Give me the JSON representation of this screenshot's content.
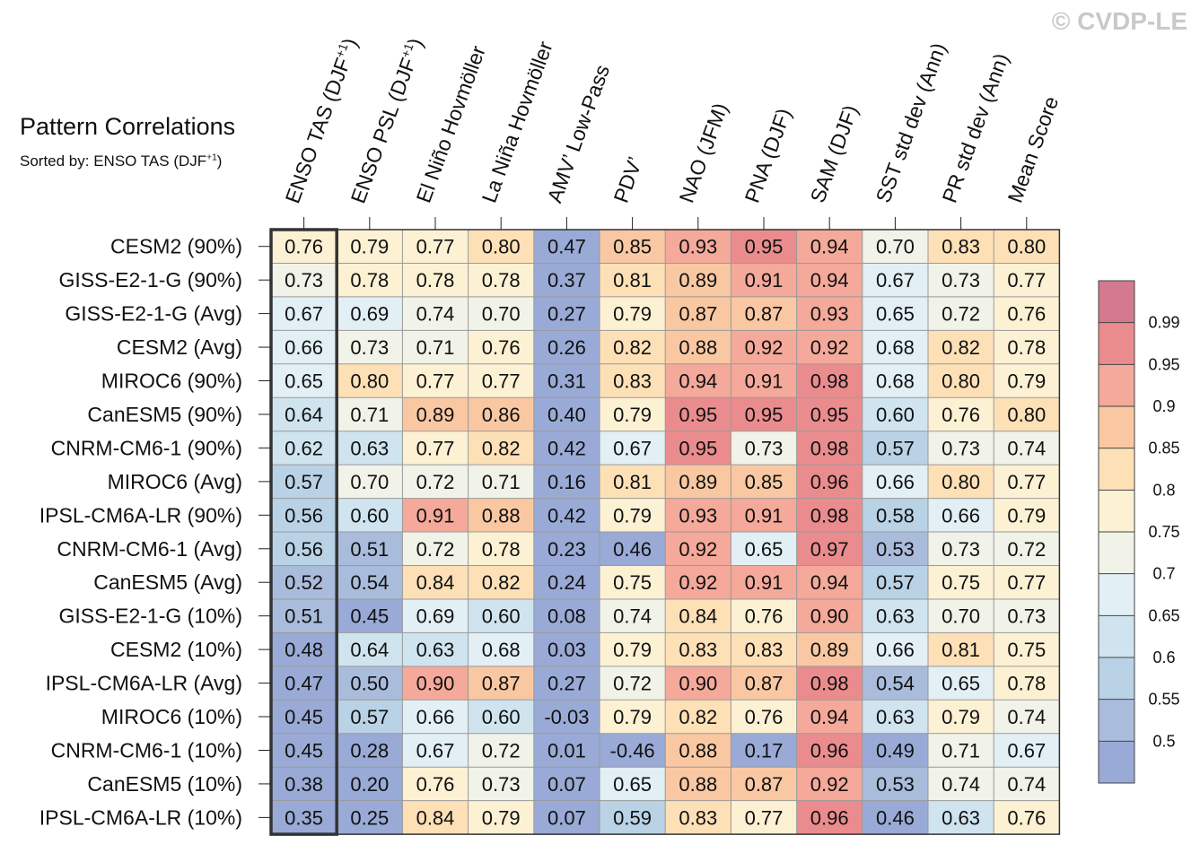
{
  "watermark": "© CVDP-LE",
  "chart_data": {
    "type": "heatmap",
    "title": "Pattern Correlations",
    "subtitle": {
      "text": "Sorted by: ENSO TAS (DJF",
      "sup": "+1",
      "suffix": ")"
    },
    "columns": [
      {
        "text": "ENSO TAS (DJF",
        "sup": "+1",
        "suffix": ")"
      },
      {
        "text": "ENSO PSL (DJF",
        "sup": "+1",
        "suffix": ")"
      },
      {
        "text": "El Niño Hovmöller"
      },
      {
        "text": "La Niña Hovmöller"
      },
      {
        "text": "AMV’ Low-Pass"
      },
      {
        "text": "PDV’"
      },
      {
        "text": "NAO (JFM)"
      },
      {
        "text": "PNA (DJF)"
      },
      {
        "text": "SAM (DJF)"
      },
      {
        "text": "SST std dev (Ann)"
      },
      {
        "text": "PR std dev (Ann)"
      },
      {
        "text": "Mean Score"
      }
    ],
    "rows": [
      "CESM2 (90%)",
      "GISS-E2-1-G (90%)",
      "GISS-E2-1-G (Avg)",
      "CESM2 (Avg)",
      "MIROC6 (90%)",
      "CanESM5 (90%)",
      "CNRM-CM6-1 (90%)",
      "MIROC6 (Avg)",
      "IPSL-CM6A-LR (90%)",
      "CNRM-CM6-1 (Avg)",
      "CanESM5 (Avg)",
      "GISS-E2-1-G (10%)",
      "CESM2 (10%)",
      "IPSL-CM6A-LR (Avg)",
      "MIROC6 (10%)",
      "CNRM-CM6-1 (10%)",
      "CanESM5 (10%)",
      "IPSL-CM6A-LR (10%)"
    ],
    "values": [
      [
        0.76,
        0.79,
        0.77,
        0.8,
        0.47,
        0.85,
        0.93,
        0.95,
        0.94,
        0.7,
        0.83,
        0.8
      ],
      [
        0.73,
        0.78,
        0.78,
        0.78,
        0.37,
        0.81,
        0.89,
        0.91,
        0.94,
        0.67,
        0.73,
        0.77
      ],
      [
        0.67,
        0.69,
        0.74,
        0.7,
        0.27,
        0.79,
        0.87,
        0.87,
        0.93,
        0.65,
        0.72,
        0.76
      ],
      [
        0.66,
        0.73,
        0.71,
        0.76,
        0.26,
        0.82,
        0.88,
        0.92,
        0.92,
        0.68,
        0.82,
        0.78
      ],
      [
        0.65,
        0.8,
        0.77,
        0.77,
        0.31,
        0.83,
        0.94,
        0.91,
        0.98,
        0.68,
        0.8,
        0.79
      ],
      [
        0.64,
        0.71,
        0.89,
        0.86,
        0.4,
        0.79,
        0.95,
        0.95,
        0.95,
        0.6,
        0.76,
        0.8
      ],
      [
        0.62,
        0.63,
        0.77,
        0.82,
        0.42,
        0.67,
        0.95,
        0.73,
        0.98,
        0.57,
        0.73,
        0.74
      ],
      [
        0.57,
        0.7,
        0.72,
        0.71,
        0.16,
        0.81,
        0.89,
        0.85,
        0.96,
        0.66,
        0.8,
        0.77
      ],
      [
        0.56,
        0.6,
        0.91,
        0.88,
        0.42,
        0.79,
        0.93,
        0.91,
        0.98,
        0.58,
        0.66,
        0.79
      ],
      [
        0.56,
        0.51,
        0.72,
        0.78,
        0.23,
        0.46,
        0.92,
        0.65,
        0.97,
        0.53,
        0.73,
        0.72
      ],
      [
        0.52,
        0.54,
        0.84,
        0.82,
        0.24,
        0.75,
        0.92,
        0.91,
        0.94,
        0.57,
        0.75,
        0.77
      ],
      [
        0.51,
        0.45,
        0.69,
        0.6,
        0.08,
        0.74,
        0.84,
        0.76,
        0.9,
        0.63,
        0.7,
        0.73
      ],
      [
        0.48,
        0.64,
        0.63,
        0.68,
        0.03,
        0.79,
        0.83,
        0.83,
        0.89,
        0.66,
        0.81,
        0.75
      ],
      [
        0.47,
        0.5,
        0.9,
        0.87,
        0.27,
        0.72,
        0.9,
        0.87,
        0.98,
        0.54,
        0.65,
        0.78
      ],
      [
        0.45,
        0.57,
        0.66,
        0.6,
        -0.03,
        0.79,
        0.82,
        0.76,
        0.94,
        0.63,
        0.79,
        0.74
      ],
      [
        0.45,
        0.28,
        0.67,
        0.72,
        0.01,
        -0.46,
        0.88,
        0.17,
        0.96,
        0.49,
        0.71,
        0.67
      ],
      [
        0.38,
        0.2,
        0.76,
        0.73,
        0.07,
        0.65,
        0.88,
        0.87,
        0.92,
        0.53,
        0.74,
        0.74
      ],
      [
        0.35,
        0.25,
        0.84,
        0.79,
        0.07,
        0.59,
        0.83,
        0.77,
        0.96,
        0.46,
        0.63,
        0.76
      ]
    ],
    "value_labels": [
      [
        "0.76",
        "0.79",
        "0.77",
        "0.80",
        "0.47",
        "0.85",
        "0.93",
        "0.95",
        "0.94",
        "0.70",
        "0.83",
        "0.80"
      ],
      [
        "0.73",
        "0.78",
        "0.78",
        "0.78",
        "0.37",
        "0.81",
        "0.89",
        "0.91",
        "0.94",
        "0.67",
        "0.73",
        "0.77"
      ],
      [
        "0.67",
        "0.69",
        "0.74",
        "0.70",
        "0.27",
        "0.79",
        "0.87",
        "0.87",
        "0.93",
        "0.65",
        "0.72",
        "0.76"
      ],
      [
        "0.66",
        "0.73",
        "0.71",
        "0.76",
        "0.26",
        "0.82",
        "0.88",
        "0.92",
        "0.92",
        "0.68",
        "0.82",
        "0.78"
      ],
      [
        "0.65",
        "0.80",
        "0.77",
        "0.77",
        "0.31",
        "0.83",
        "0.94",
        "0.91",
        "0.98",
        "0.68",
        "0.80",
        "0.79"
      ],
      [
        "0.64",
        "0.71",
        "0.89",
        "0.86",
        "0.40",
        "0.79",
        "0.95",
        "0.95",
        "0.95",
        "0.60",
        "0.76",
        "0.80"
      ],
      [
        "0.62",
        "0.63",
        "0.77",
        "0.82",
        "0.42",
        "0.67",
        "0.95",
        "0.73",
        "0.98",
        "0.57",
        "0.73",
        "0.74"
      ],
      [
        "0.57",
        "0.70",
        "0.72",
        "0.71",
        "0.16",
        "0.81",
        "0.89",
        "0.85",
        "0.96",
        "0.66",
        "0.80",
        "0.77"
      ],
      [
        "0.56",
        "0.60",
        "0.91",
        "0.88",
        "0.42",
        "0.79",
        "0.93",
        "0.91",
        "0.98",
        "0.58",
        "0.66",
        "0.79"
      ],
      [
        "0.56",
        "0.51",
        "0.72",
        "0.78",
        "0.23",
        "0.46",
        "0.92",
        "0.65",
        "0.97",
        "0.53",
        "0.73",
        "0.72"
      ],
      [
        "0.52",
        "0.54",
        "0.84",
        "0.82",
        "0.24",
        "0.75",
        "0.92",
        "0.91",
        "0.94",
        "0.57",
        "0.75",
        "0.77"
      ],
      [
        "0.51",
        "0.45",
        "0.69",
        "0.60",
        "0.08",
        "0.74",
        "0.84",
        "0.76",
        "0.90",
        "0.63",
        "0.70",
        "0.73"
      ],
      [
        "0.48",
        "0.64",
        "0.63",
        "0.68",
        "0.03",
        "0.79",
        "0.83",
        "0.83",
        "0.89",
        "0.66",
        "0.81",
        "0.75"
      ],
      [
        "0.47",
        "0.50",
        "0.90",
        "0.87",
        "0.27",
        "0.72",
        "0.90",
        "0.87",
        "0.98",
        "0.54",
        "0.65",
        "0.78"
      ],
      [
        "0.45",
        "0.57",
        "0.66",
        "0.60",
        "-0.03",
        "0.79",
        "0.82",
        "0.76",
        "0.94",
        "0.63",
        "0.79",
        "0.74"
      ],
      [
        "0.45",
        "0.28",
        "0.67",
        "0.72",
        "0.01",
        "-0.46",
        "0.88",
        "0.17",
        "0.96",
        "0.49",
        "0.71",
        "0.67"
      ],
      [
        "0.38",
        "0.20",
        "0.76",
        "0.73",
        "0.07",
        "0.65",
        "0.88",
        "0.87",
        "0.92",
        "0.53",
        "0.74",
        "0.74"
      ],
      [
        "0.35",
        "0.25",
        "0.84",
        "0.79",
        "0.07",
        "0.59",
        "0.83",
        "0.77",
        "0.96",
        "0.46",
        "0.63",
        "0.76"
      ]
    ],
    "highlighted_column": 0,
    "colorbar": {
      "levels": [
        0.5,
        0.55,
        0.6,
        0.65,
        0.7,
        0.75,
        0.8,
        0.85,
        0.9,
        0.95,
        0.99
      ],
      "tick_labels": [
        "0.5",
        "0.55",
        "0.6",
        "0.65",
        "0.7",
        "0.75",
        "0.8",
        "0.85",
        "0.9",
        "0.95",
        "0.99"
      ],
      "colors": [
        "#9aaad6",
        "#aabcdb",
        "#bad2e5",
        "#cfe4ef",
        "#e2eff5",
        "#f1f2e8",
        "#fdf1d4",
        "#fde0b6",
        "#f9c8a2",
        "#f4a99a",
        "#ea8c8e",
        "#d57a8e"
      ]
    }
  }
}
